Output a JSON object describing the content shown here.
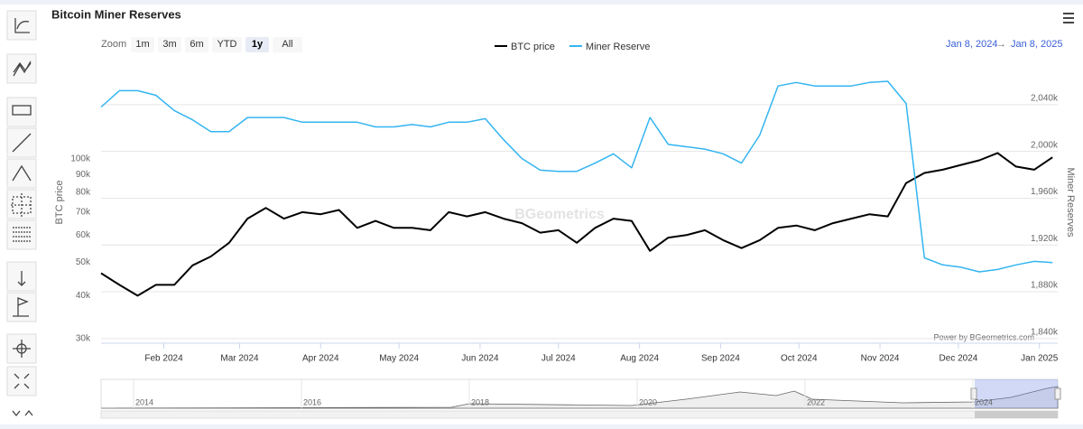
{
  "chart_data": {
    "type": "line",
    "title": "Bitcoin Miner Reserves",
    "zoom": {
      "label": "Zoom",
      "buttons": [
        "1m",
        "3m",
        "6m",
        "YTD",
        "1y",
        "All"
      ],
      "selected": "1y"
    },
    "range": {
      "from": "Jan 8, 2024",
      "arrow": "→",
      "to": "Jan 8, 2025"
    },
    "ylabel": "BTC price",
    "y2label": "Miner Reserves",
    "credit": "Power by BGeometrics.com",
    "watermark": "BGeometrics",
    "yscale": "log",
    "grid": "y2",
    "legend": "top",
    "x": [
      "2024-01-08",
      "2024-01-15",
      "2024-01-22",
      "2024-01-29",
      "2024-02-05",
      "2024-02-12",
      "2024-02-19",
      "2024-02-26",
      "2024-03-04",
      "2024-03-11",
      "2024-03-18",
      "2024-03-25",
      "2024-04-01",
      "2024-04-08",
      "2024-04-15",
      "2024-04-22",
      "2024-04-29",
      "2024-05-06",
      "2024-05-13",
      "2024-05-20",
      "2024-05-27",
      "2024-06-03",
      "2024-06-10",
      "2024-06-17",
      "2024-06-24",
      "2024-07-01",
      "2024-07-08",
      "2024-07-15",
      "2024-07-22",
      "2024-07-29",
      "2024-08-05",
      "2024-08-12",
      "2024-08-19",
      "2024-08-26",
      "2024-09-02",
      "2024-09-09",
      "2024-09-16",
      "2024-09-23",
      "2024-09-30",
      "2024-10-07",
      "2024-10-14",
      "2024-10-21",
      "2024-10-28",
      "2024-11-04",
      "2024-11-11",
      "2024-11-18",
      "2024-11-25",
      "2024-12-02",
      "2024-12-09",
      "2024-12-16",
      "2024-12-23",
      "2024-12-30",
      "2025-01-06"
    ],
    "series": [
      {
        "name": "BTC price",
        "color": "#000000",
        "values": [
          46500,
          43000,
          40000,
          43000,
          43000,
          49000,
          52000,
          57000,
          67000,
          72000,
          67000,
          70000,
          69000,
          71000,
          63000,
          66000,
          63000,
          63000,
          62000,
          70000,
          68000,
          70000,
          67000,
          65000,
          61000,
          62000,
          57000,
          63000,
          67000,
          66000,
          54000,
          59000,
          60000,
          62000,
          58000,
          55000,
          58000,
          63000,
          64000,
          62000,
          65000,
          67000,
          69000,
          68000,
          85000,
          91000,
          93000,
          96000,
          99000,
          104000,
          95000,
          93000,
          101000
        ]
      },
      {
        "name": "Miner Reserve",
        "color": "#33b5f0",
        "axis": "y2",
        "values": [
          2038000,
          2052000,
          2052000,
          2048000,
          2035000,
          2027000,
          2017000,
          2017000,
          2029000,
          2029000,
          2029000,
          2025000,
          2025000,
          2025000,
          2025000,
          2021000,
          2021000,
          2023000,
          2021000,
          2025000,
          2025000,
          2028000,
          2010000,
          1994000,
          1984000,
          1983000,
          1983000,
          1990000,
          1998000,
          1986000,
          2029000,
          2006000,
          2004000,
          2002000,
          1998000,
          1990000,
          2014000,
          2056000,
          2059000,
          2056000,
          2056000,
          2056000,
          2059000,
          2060000,
          2041000,
          1909000,
          1903000,
          1901000,
          1897000,
          1899000,
          1903000,
          1906000,
          1905000
        ]
      }
    ],
    "xlim": [
      "2024-01-08",
      "2025-01-08"
    ],
    "xticks": [
      {
        "value": "2024-02-01",
        "label": "Feb 2024"
      },
      {
        "value": "2024-03-01",
        "label": "Mar 2024"
      },
      {
        "value": "2024-04-01",
        "label": "Apr 2024"
      },
      {
        "value": "2024-05-01",
        "label": "May 2024"
      },
      {
        "value": "2024-06-01",
        "label": "Jun 2024"
      },
      {
        "value": "2024-07-01",
        "label": "Jul 2024"
      },
      {
        "value": "2024-08-01",
        "label": "Aug 2024"
      },
      {
        "value": "2024-09-01",
        "label": "Sep 2024"
      },
      {
        "value": "2024-10-01",
        "label": "Oct 2024"
      },
      {
        "value": "2024-11-01",
        "label": "Nov 2024"
      },
      {
        "value": "2024-12-01",
        "label": "Dec 2024"
      },
      {
        "value": "2025-01-01",
        "label": "Jan 2025"
      }
    ],
    "ylim": [
      29100,
      192000
    ],
    "yticks": [
      {
        "value": 30000,
        "label": "30k"
      },
      {
        "value": 40000,
        "label": "40k"
      },
      {
        "value": 50000,
        "label": "50k"
      },
      {
        "value": 60000,
        "label": "60k"
      },
      {
        "value": 70000,
        "label": "70k"
      },
      {
        "value": 80000,
        "label": "80k"
      },
      {
        "value": 90000,
        "label": "90k"
      },
      {
        "value": 100000,
        "label": "100k"
      }
    ],
    "y2lim": [
      1836000,
      2077000
    ],
    "y2ticks": [
      {
        "value": 1840000,
        "label": "1,840k"
      },
      {
        "value": 1880000,
        "label": "1,880k"
      },
      {
        "value": 1920000,
        "label": "1,920k"
      },
      {
        "value": 1960000,
        "label": "1,960k"
      },
      {
        "value": 2000000,
        "label": "2,000k"
      },
      {
        "value": 2040000,
        "label": "2,040k"
      }
    ],
    "navigator": {
      "labels": [
        "2014",
        "2016",
        "2018",
        "2020",
        "2022",
        "2024"
      ]
    }
  }
}
